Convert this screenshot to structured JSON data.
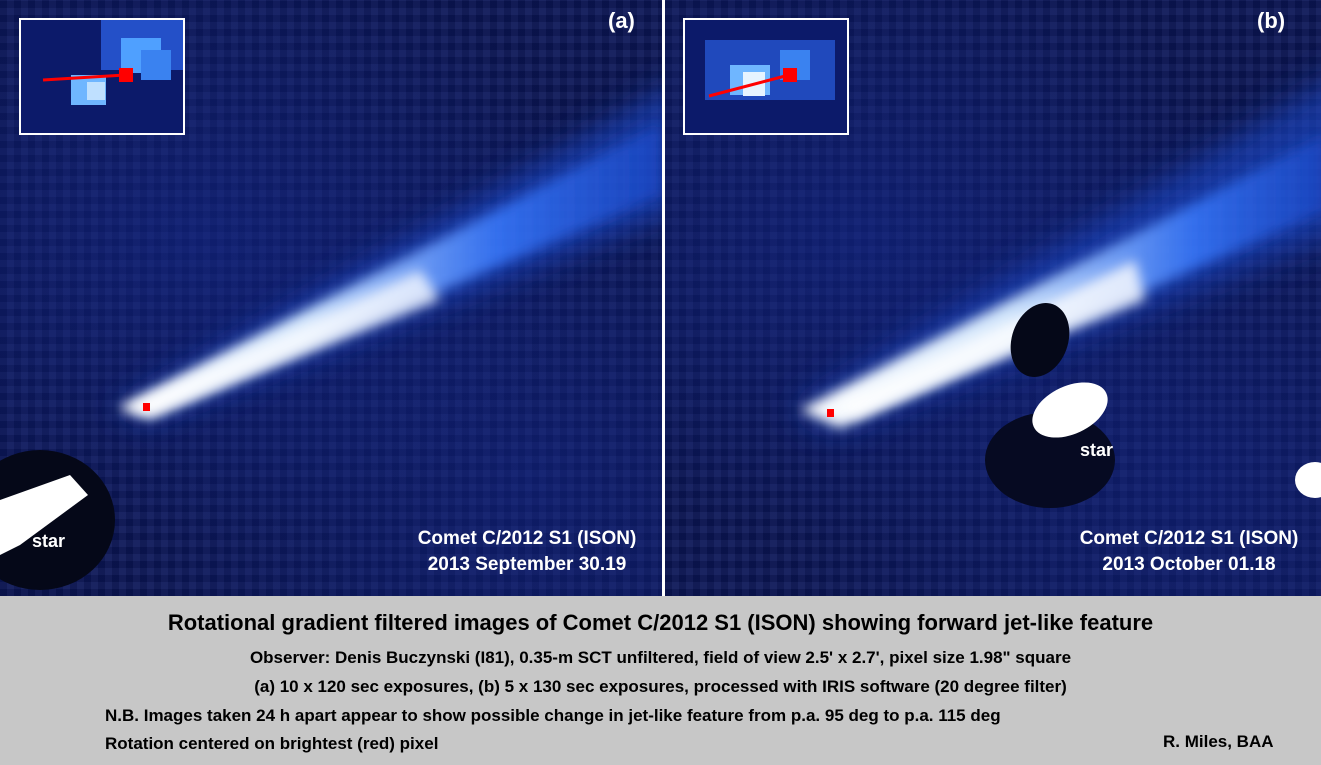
{
  "panels": [
    {
      "id": "a",
      "label": "(a)",
      "caption_line1": "Comet C/2012 S1 (ISON)",
      "caption_line2": "2013 September 30.19",
      "star_label": "star"
    },
    {
      "id": "b",
      "label": "(b)",
      "caption_line1": "Comet C/2012 S1 (ISON)",
      "caption_line2": "2013 October 01.18",
      "star_label": "star"
    }
  ],
  "footer": {
    "title": "Rotational gradient filtered images of Comet C/2012 S1 (ISON) showing forward jet-like feature",
    "observer": "Observer: Denis Buczynski (I81), 0.35-m SCT unfiltered, field of view 2.5' x 2.7', pixel size 1.98\" square",
    "exposures": "(a) 10 x 120 sec exposures, (b) 5 x 130 sec exposures, processed with IRIS software (20 degree filter)",
    "note": "N.B. Images taken 24 h apart appear to show possible change in jet-like feature from p.a. 95 deg to p.a. 115 deg",
    "rotation": "Rotation centered on brightest (red) pixel",
    "credit": "R. Miles, BAA"
  },
  "colors": {
    "background_sky": "#0b1657",
    "comet_glow": "#3a7cff",
    "marker": "#ff0000",
    "footer_bg": "#c7c7c7"
  }
}
